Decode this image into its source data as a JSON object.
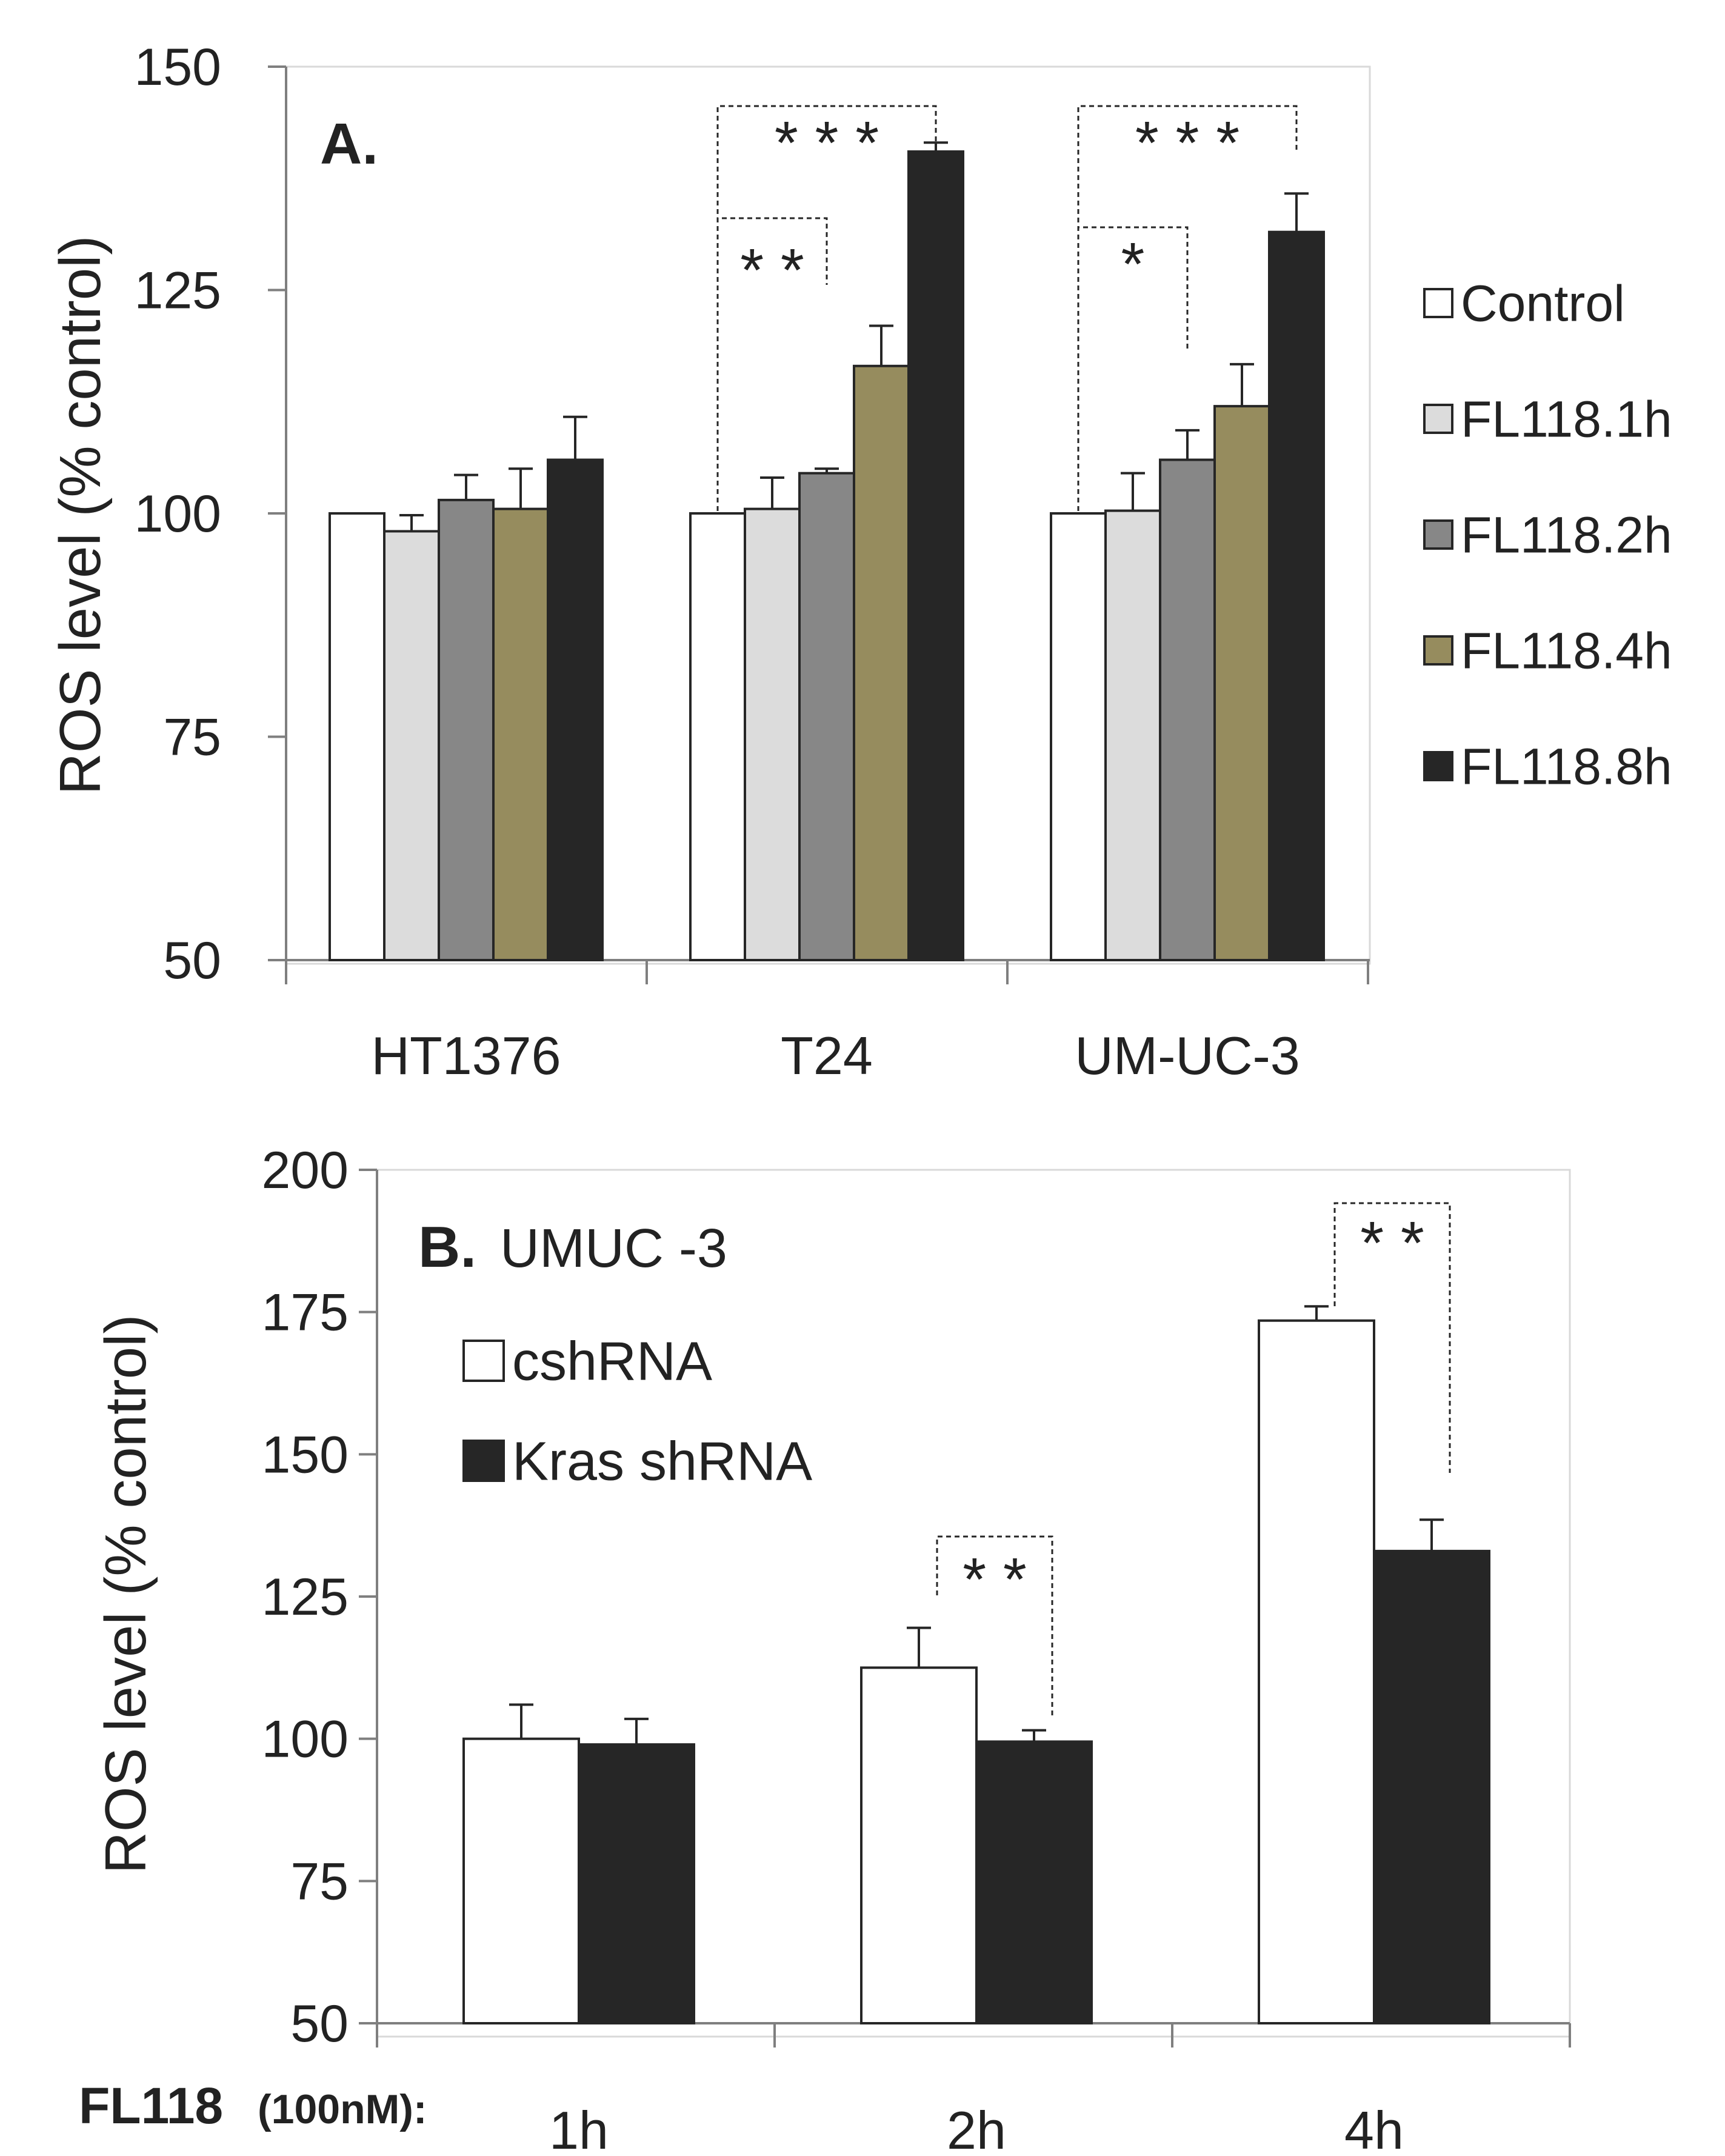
{
  "chart_data": [
    {
      "type": "bar",
      "panel_label": "A.",
      "ylabel": "ROS level (% control)",
      "ylim": [
        50,
        150
      ],
      "yticks": [
        50,
        75,
        100,
        125,
        150
      ],
      "categories": [
        "HT1376",
        "T24",
        "UM-UC-3"
      ],
      "series": [
        {
          "name": "Control",
          "color": "#ffffff",
          "values": [
            100,
            100,
            100
          ],
          "errors": [
            0,
            0,
            0
          ]
        },
        {
          "name": "FL118.1h",
          "color": "#dcdcdc",
          "values": [
            98,
            100.5,
            100.3
          ],
          "errors": [
            1.8,
            3.5,
            4.2
          ]
        },
        {
          "name": "FL118.2h",
          "color": "#878787",
          "values": [
            101.5,
            104.5,
            106
          ],
          "errors": [
            2.8,
            0.5,
            3.3
          ]
        },
        {
          "name": "FL118.4h",
          "color": "#968c5e",
          "values": [
            100.5,
            116.5,
            112
          ],
          "errors": [
            4.5,
            4.5,
            4.7
          ]
        },
        {
          "name": "FL118.8h",
          "color": "#262626",
          "values": [
            106,
            140.5,
            131.5
          ],
          "errors": [
            4.8,
            1,
            4.3
          ]
        }
      ],
      "legend": "right",
      "grid": false,
      "significance": [
        {
          "category": "T24",
          "from": "Control",
          "to": "FL118.2h",
          "label": "* *"
        },
        {
          "category": "T24",
          "from": "Control",
          "to": "FL118.8h",
          "label": "* * *"
        },
        {
          "category": "UM-UC-3",
          "from": "Control",
          "to": "FL118.2h",
          "label": "*"
        },
        {
          "category": "UM-UC-3",
          "from": "Control",
          "to": "FL118.8h",
          "label": "* * *"
        }
      ]
    },
    {
      "type": "bar",
      "panel_label": "B.",
      "panel_subtitle": "UMUC -3",
      "ylabel": "ROS level (% control)",
      "xlabel_prefix": "FL118",
      "xlabel_suffix": "(100nM):",
      "ylim": [
        50,
        200
      ],
      "yticks": [
        50,
        75,
        100,
        125,
        150,
        175,
        200
      ],
      "categories": [
        "1h",
        "2h",
        "4h"
      ],
      "series": [
        {
          "name": "cshRNA",
          "color": "#ffffff",
          "values": [
            100,
            112.5,
            173.5
          ],
          "errors": [
            6,
            7,
            2.5
          ]
        },
        {
          "name": "Kras shRNA",
          "color": "#262626",
          "values": [
            99,
            99.5,
            133
          ],
          "errors": [
            4.5,
            2,
            5.5
          ]
        }
      ],
      "legend": "top-left",
      "grid": false,
      "significance": [
        {
          "category": "2h",
          "label": "* *"
        },
        {
          "category": "4h",
          "label": "* *"
        }
      ]
    }
  ]
}
